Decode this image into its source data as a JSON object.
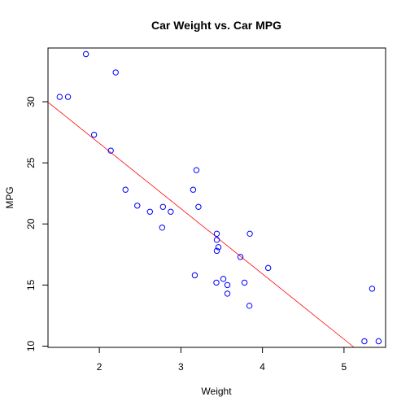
{
  "chart_data": {
    "type": "scatter",
    "title": "Car Weight vs. Car MPG",
    "xlabel": "Weight",
    "ylabel": "MPG",
    "xlim": [
      1.37,
      5.51
    ],
    "ylim": [
      9.9,
      34.4
    ],
    "x_ticks": [
      2,
      3,
      4,
      5
    ],
    "y_ticks": [
      10,
      15,
      20,
      25,
      30
    ],
    "grid": false,
    "point_color": "#0000ff",
    "line_color": "#ff0000",
    "points": [
      {
        "x": 2.62,
        "y": 21.0
      },
      {
        "x": 2.875,
        "y": 21.0
      },
      {
        "x": 2.32,
        "y": 22.8
      },
      {
        "x": 3.215,
        "y": 21.4
      },
      {
        "x": 3.44,
        "y": 18.7
      },
      {
        "x": 3.46,
        "y": 18.1
      },
      {
        "x": 3.57,
        "y": 14.3
      },
      {
        "x": 3.19,
        "y": 24.4
      },
      {
        "x": 3.15,
        "y": 22.8
      },
      {
        "x": 3.44,
        "y": 19.2
      },
      {
        "x": 3.44,
        "y": 17.8
      },
      {
        "x": 4.07,
        "y": 16.4
      },
      {
        "x": 3.73,
        "y": 17.3
      },
      {
        "x": 3.78,
        "y": 15.2
      },
      {
        "x": 5.25,
        "y": 10.4
      },
      {
        "x": 5.424,
        "y": 10.4
      },
      {
        "x": 5.345,
        "y": 14.7
      },
      {
        "x": 2.2,
        "y": 32.4
      },
      {
        "x": 1.615,
        "y": 30.4
      },
      {
        "x": 1.835,
        "y": 33.9
      },
      {
        "x": 2.465,
        "y": 21.5
      },
      {
        "x": 3.52,
        "y": 15.5
      },
      {
        "x": 3.435,
        "y": 15.2
      },
      {
        "x": 3.84,
        "y": 13.3
      },
      {
        "x": 3.845,
        "y": 19.2
      },
      {
        "x": 1.935,
        "y": 27.3
      },
      {
        "x": 2.14,
        "y": 26.0
      },
      {
        "x": 1.513,
        "y": 30.4
      },
      {
        "x": 3.17,
        "y": 15.8
      },
      {
        "x": 2.77,
        "y": 19.7
      },
      {
        "x": 3.57,
        "y": 15.0
      },
      {
        "x": 2.78,
        "y": 21.4
      }
    ],
    "regression": {
      "intercept": 37.285,
      "slope": -5.344
    }
  }
}
